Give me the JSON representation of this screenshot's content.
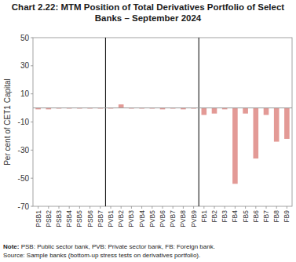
{
  "chart_data": {
    "type": "bar",
    "title": "Chart 2.22: MTM Position of Total Derivatives Portfolio of Select Banks – September 2024",
    "y_label": "Per cent of CET1 Capital",
    "categories": [
      "PSB1",
      "PSB2",
      "PSB3",
      "PSB4",
      "PSB5",
      "PSB6",
      "PSB7",
      "PVB1",
      "PVB2",
      "PVB3",
      "PVB4",
      "PVB5",
      "PVB6",
      "PVB7",
      "PVB8",
      "PVB9",
      "FB1",
      "FB2",
      "FB3",
      "FB4",
      "FB5",
      "FB6",
      "FB7",
      "FB8",
      "FB9"
    ],
    "values": [
      -1,
      -1,
      -0.5,
      -0.5,
      -0.5,
      -0.5,
      -0.5,
      -0.5,
      2.5,
      -0.5,
      -0.5,
      -0.5,
      -1,
      -0.5,
      -1,
      -0.5,
      -5,
      -4,
      -1,
      -54,
      -4,
      -36,
      -5,
      -24,
      -22
    ],
    "color": "#e39a96",
    "ylim": [
      -70,
      50
    ],
    "yticks": [
      -70,
      -50,
      -30,
      -10,
      10,
      30,
      50
    ],
    "grid": false,
    "notes": [
      "Note: PSB: Public sector bank, PVB: Private sector bank, FB: Foreign bank.",
      "Source: Sample banks (bottom-up stress tests on derivatives portfolio)."
    ]
  }
}
